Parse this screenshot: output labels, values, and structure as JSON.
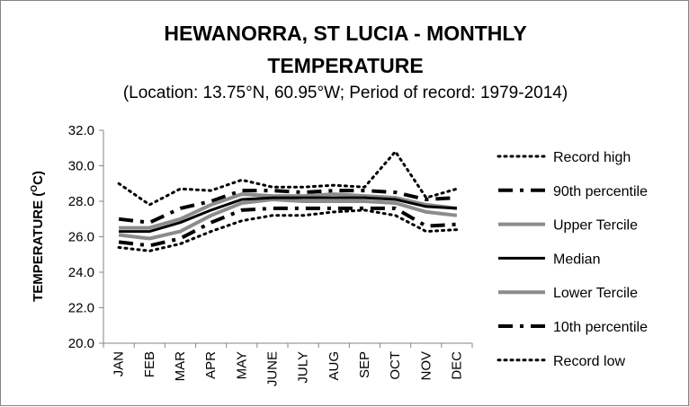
{
  "chart_data": {
    "type": "line",
    "title_line1": "HEWANORRA, ST LUCIA - MONTHLY",
    "title_line2": "TEMPERATURE",
    "subtitle": "(Location: 13.75°N, 60.95°W; Period of record: 1979-2014)",
    "ylabel_main": "TEMPERATURE (",
    "ylabel_sup": "O",
    "ylabel_end": "C)",
    "xlabel": "",
    "ylim": [
      20.0,
      32.0
    ],
    "yticks": [
      "20.0",
      "22.0",
      "24.0",
      "26.0",
      "28.0",
      "30.0",
      "32.0"
    ],
    "categories": [
      "JAN",
      "FEB",
      "MAR",
      "APR",
      "MAY",
      "JUNE",
      "JULY",
      "AUG",
      "SEP",
      "OCT",
      "NOV",
      "DEC"
    ],
    "grid": false,
    "legend_position": "right",
    "series": [
      {
        "name": "Record high",
        "style": "dot",
        "color": "#000000",
        "values": [
          29.0,
          27.8,
          28.7,
          28.6,
          29.2,
          28.8,
          28.8,
          28.9,
          28.8,
          30.8,
          28.2,
          28.7
        ]
      },
      {
        "name": "90th percentile",
        "style": "dashdot",
        "color": "#000000",
        "values": [
          27.0,
          26.8,
          27.6,
          28.0,
          28.6,
          28.6,
          28.5,
          28.6,
          28.6,
          28.5,
          28.1,
          28.2
        ]
      },
      {
        "name": "Upper Tercile",
        "style": "solid-gray",
        "color": "#8c8c8c",
        "values": [
          26.5,
          26.5,
          27.0,
          27.8,
          28.4,
          28.3,
          28.3,
          28.4,
          28.3,
          28.2,
          27.8,
          27.6
        ]
      },
      {
        "name": "Median",
        "style": "solid-black",
        "color": "#000000",
        "values": [
          26.3,
          26.3,
          26.8,
          27.5,
          28.1,
          28.2,
          28.2,
          28.2,
          28.2,
          28.1,
          27.7,
          27.6
        ]
      },
      {
        "name": "Lower Tercile",
        "style": "solid-gray",
        "color": "#8c8c8c",
        "values": [
          26.1,
          25.9,
          26.3,
          27.2,
          27.9,
          28.1,
          28.0,
          28.0,
          28.0,
          27.9,
          27.4,
          27.2
        ]
      },
      {
        "name": "10th percentile",
        "style": "dashdot",
        "color": "#000000",
        "values": [
          25.7,
          25.5,
          25.9,
          26.8,
          27.5,
          27.6,
          27.6,
          27.6,
          27.6,
          27.6,
          26.6,
          26.7
        ]
      },
      {
        "name": "Record low",
        "style": "dot",
        "color": "#000000",
        "values": [
          25.4,
          25.2,
          25.6,
          26.3,
          26.9,
          27.2,
          27.2,
          27.4,
          27.5,
          27.2,
          26.3,
          26.4
        ]
      }
    ]
  }
}
